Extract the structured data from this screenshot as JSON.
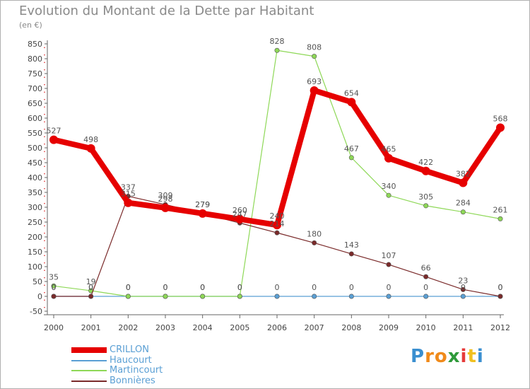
{
  "chart_data": {
    "type": "line",
    "title": "Evolution du Montant de la Dette par Habitant",
    "subtitle": "(en €)",
    "x": [
      "2000",
      "2001",
      "2002",
      "2003",
      "2004",
      "2005",
      "2006",
      "2007",
      "2008",
      "2009",
      "2010",
      "2011",
      "2012"
    ],
    "ylim": [
      -50,
      850
    ],
    "yticks": [
      -50,
      0,
      50,
      100,
      150,
      200,
      250,
      300,
      350,
      400,
      450,
      500,
      550,
      600,
      650,
      700,
      750,
      800,
      850
    ],
    "grid": false,
    "legend_position": "bottom-left",
    "series": [
      {
        "name": "CRILLON",
        "color": "#e60000",
        "values": [
          527,
          498,
          315,
          298,
          279,
          260,
          240,
          693,
          654,
          465,
          422,
          382,
          568
        ]
      },
      {
        "name": "Haucourt",
        "color": "#5a9fd4",
        "values": [
          0,
          0,
          0,
          0,
          0,
          0,
          0,
          0,
          0,
          0,
          0,
          0,
          0
        ]
      },
      {
        "name": "Martincourt",
        "color": "#8ed857",
        "values": [
          35,
          19,
          0,
          0,
          0,
          0,
          828,
          808,
          467,
          340,
          305,
          284,
          261
        ]
      },
      {
        "name": "Bonnières",
        "color": "#7a2a2a",
        "values": [
          0,
          0,
          337,
          309,
          279,
          247,
          214,
          180,
          143,
          107,
          66,
          23,
          0
        ]
      }
    ]
  },
  "logo": {
    "letters": [
      "P",
      "r",
      "o",
      "x",
      "i",
      "t",
      "i"
    ],
    "colors": [
      "#3a8fd0",
      "#f08a1a",
      "#f08a1a",
      "#2e9a3a",
      "#e63a3a",
      "#f0c020",
      "#3a8fd0"
    ]
  }
}
